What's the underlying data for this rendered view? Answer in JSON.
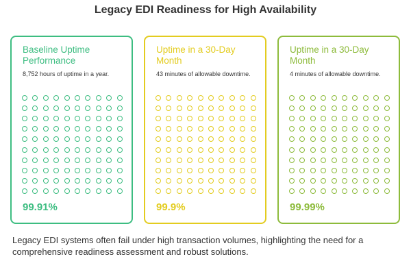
{
  "title": "Legacy EDI Readiness for High Availability",
  "cards": [
    {
      "title": "Baseline Uptime Performance",
      "description": "8,752 hours of uptime in a year.",
      "value": "99.91%",
      "color": "#3dbd81",
      "dot_count": 100
    },
    {
      "title": "Uptime in a 30-Day Month",
      "description": "43 minutes of allowable downtime.",
      "value": "99.9%",
      "color": "#e3cc1f",
      "dot_count": 100
    },
    {
      "title": "Uptime in a 30-Day Month",
      "description": "4 minutes of allowable downtime.",
      "value": "99.99%",
      "color": "#8dbb3b",
      "dot_count": 100
    }
  ],
  "footer": "Legacy EDI systems often fail under high transaction volumes, highlighting the need for a comprehensive readiness assessment and robust solutions."
}
